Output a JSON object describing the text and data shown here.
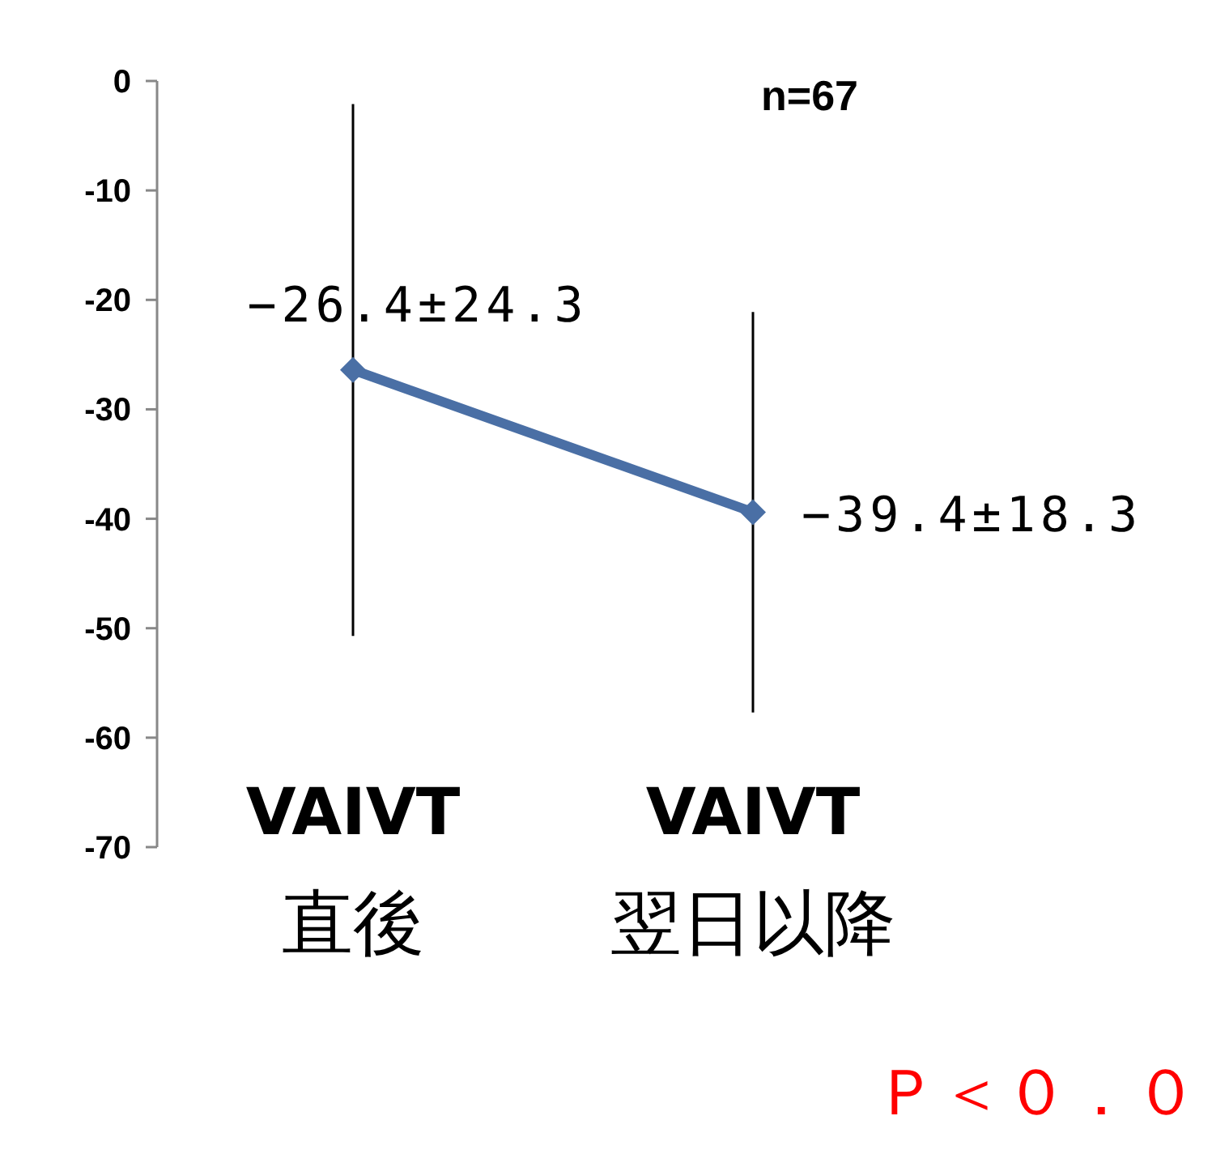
{
  "chart_data": {
    "type": "line",
    "categories": [
      "VAIVT\n直後",
      "VAIVT\n翌日以降"
    ],
    "series": [
      {
        "color": "#4a6fa5",
        "values": [
          -26.4,
          -39.4
        ],
        "errors": [
          24.3,
          18.3
        ],
        "value_labels": [
          "−26.4±24.3",
          "−39.4±18.3"
        ]
      }
    ],
    "ylim": [
      -70,
      0
    ],
    "yticks": [
      0,
      -10,
      -20,
      -30,
      -40,
      -50,
      -60,
      -70
    ],
    "grid": false,
    "marker": "diamond",
    "line_style": "solid",
    "annotations": [
      "n=67",
      "Ｐ＜０．０"
    ]
  }
}
